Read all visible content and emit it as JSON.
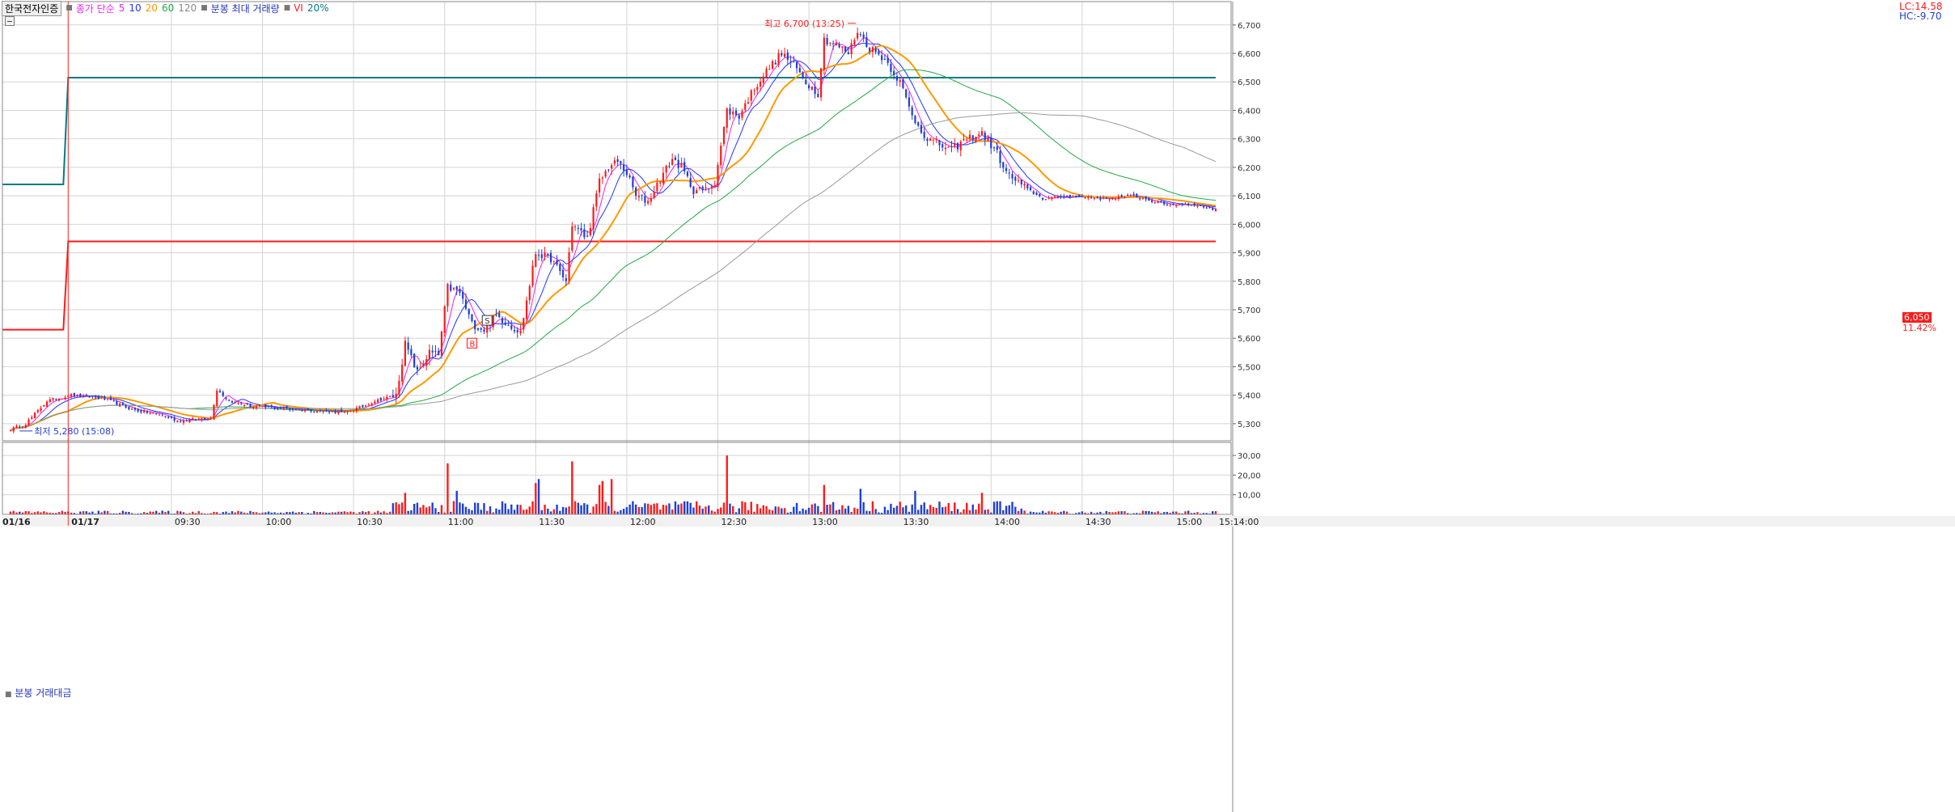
{
  "toolbar": {
    "stock_name": "한국전자인증",
    "price_label": "종가 단순",
    "ma_periods": [
      "5",
      "10",
      "20",
      "60",
      "120"
    ],
    "max_volume_label": "분봉 최대 거래량",
    "vi_label": "VI",
    "vi_pct": "20%"
  },
  "colors": {
    "up": "#ff1a1a",
    "down": "#1f3fd6",
    "ma5": "#ee22ee",
    "ma10": "#2233ff",
    "ma20": "#ff9900",
    "ma60": "#22aa44",
    "ma120": "#999999",
    "vi_upper": "#007b86",
    "vi_lower": "#ff1a1a",
    "grid": "#d4d4d4"
  },
  "right_top": {
    "lc": "LC:14.58",
    "hc": "HC:-9.70"
  },
  "current": {
    "price": "6,050",
    "pct": "11.42%"
  },
  "volume_panel": {
    "title": "분봉 거래대금"
  },
  "chart_data": {
    "type": "candlestick",
    "title": "한국전자인증 분봉",
    "price_axis": {
      "min": 5240,
      "max": 6725,
      "ticks": [
        "6,700",
        "6,600",
        "6,500",
        "6,400",
        "6,300",
        "6,200",
        "6,100",
        "6,000",
        "5,900",
        "5,800",
        "5,700",
        "5,600",
        "5,500",
        "5,400",
        "5,300"
      ]
    },
    "volume_axis": {
      "max": 35,
      "ticks": [
        "30,00",
        "20,00",
        "10,00"
      ]
    },
    "x_ticks": [
      {
        "label": "01/16",
        "bar": 0
      },
      {
        "label": "01/17",
        "bar": 19
      },
      {
        "label": "09:30",
        "bar": 53
      },
      {
        "label": "10:00",
        "bar": 83
      },
      {
        "label": "10:30",
        "bar": 113
      },
      {
        "label": "11:00",
        "bar": 143
      },
      {
        "label": "11:30",
        "bar": 173
      },
      {
        "label": "12:00",
        "bar": 203
      },
      {
        "label": "12:30",
        "bar": 233
      },
      {
        "label": "13:00",
        "bar": 263
      },
      {
        "label": "13:30",
        "bar": 293
      },
      {
        "label": "14:00",
        "bar": 323
      },
      {
        "label": "14:30",
        "bar": 353
      },
      {
        "label": "15:00",
        "bar": 383
      },
      {
        "label": "15:14:00",
        "bar": 397
      }
    ],
    "key_points": [
      {
        "bar": 0,
        "price": 5280
      },
      {
        "bar": 5,
        "price": 5300
      },
      {
        "bar": 12,
        "price": 5380
      },
      {
        "bar": 20,
        "price": 5400
      },
      {
        "bar": 30,
        "price": 5390
      },
      {
        "bar": 40,
        "price": 5350
      },
      {
        "bar": 50,
        "price": 5330
      },
      {
        "bar": 55,
        "price": 5310
      },
      {
        "bar": 66,
        "price": 5320
      },
      {
        "bar": 68,
        "price": 5420
      },
      {
        "bar": 72,
        "price": 5380
      },
      {
        "bar": 80,
        "price": 5360
      },
      {
        "bar": 95,
        "price": 5350
      },
      {
        "bar": 110,
        "price": 5340
      },
      {
        "bar": 116,
        "price": 5360
      },
      {
        "bar": 120,
        "price": 5380
      },
      {
        "bar": 127,
        "price": 5400
      },
      {
        "bar": 130,
        "price": 5580
      },
      {
        "bar": 134,
        "price": 5480
      },
      {
        "bar": 138,
        "price": 5550
      },
      {
        "bar": 141,
        "price": 5540
      },
      {
        "bar": 144,
        "price": 5780
      },
      {
        "bar": 148,
        "price": 5760
      },
      {
        "bar": 152,
        "price": 5650
      },
      {
        "bar": 156,
        "price": 5630
      },
      {
        "bar": 160,
        "price": 5680
      },
      {
        "bar": 168,
        "price": 5620
      },
      {
        "bar": 173,
        "price": 5900
      },
      {
        "bar": 178,
        "price": 5880
      },
      {
        "bar": 183,
        "price": 5800
      },
      {
        "bar": 185,
        "price": 6000
      },
      {
        "bar": 190,
        "price": 5950
      },
      {
        "bar": 194,
        "price": 6150
      },
      {
        "bar": 197,
        "price": 6200
      },
      {
        "bar": 200,
        "price": 6220
      },
      {
        "bar": 203,
        "price": 6180
      },
      {
        "bar": 206,
        "price": 6100
      },
      {
        "bar": 210,
        "price": 6080
      },
      {
        "bar": 214,
        "price": 6160
      },
      {
        "bar": 218,
        "price": 6230
      },
      {
        "bar": 221,
        "price": 6200
      },
      {
        "bar": 225,
        "price": 6120
      },
      {
        "bar": 229,
        "price": 6120
      },
      {
        "bar": 232,
        "price": 6150
      },
      {
        "bar": 236,
        "price": 6400
      },
      {
        "bar": 240,
        "price": 6380
      },
      {
        "bar": 245,
        "price": 6480
      },
      {
        "bar": 250,
        "price": 6550
      },
      {
        "bar": 254,
        "price": 6600
      },
      {
        "bar": 258,
        "price": 6560
      },
      {
        "bar": 262,
        "price": 6500
      },
      {
        "bar": 266,
        "price": 6460
      },
      {
        "bar": 268,
        "price": 6650
      },
      {
        "bar": 272,
        "price": 6630
      },
      {
        "bar": 276,
        "price": 6600
      },
      {
        "bar": 279,
        "price": 6680
      },
      {
        "bar": 283,
        "price": 6620
      },
      {
        "bar": 288,
        "price": 6580
      },
      {
        "bar": 293,
        "price": 6500
      },
      {
        "bar": 297,
        "price": 6380
      },
      {
        "bar": 302,
        "price": 6300
      },
      {
        "bar": 306,
        "price": 6280
      },
      {
        "bar": 310,
        "price": 6260
      },
      {
        "bar": 315,
        "price": 6300
      },
      {
        "bar": 320,
        "price": 6320
      },
      {
        "bar": 325,
        "price": 6250
      },
      {
        "bar": 328,
        "price": 6180
      },
      {
        "bar": 334,
        "price": 6130
      },
      {
        "bar": 340,
        "price": 6090
      },
      {
        "bar": 350,
        "price": 6100
      },
      {
        "bar": 360,
        "price": 6090
      },
      {
        "bar": 370,
        "price": 6100
      },
      {
        "bar": 380,
        "price": 6070
      },
      {
        "bar": 390,
        "price": 6070
      },
      {
        "bar": 397,
        "price": 6050
      }
    ],
    "volume_spikes": [
      {
        "bar": 130,
        "value": 11
      },
      {
        "bar": 144,
        "value": 26
      },
      {
        "bar": 147,
        "value": 12
      },
      {
        "bar": 173,
        "value": 16
      },
      {
        "bar": 174,
        "value": 18
      },
      {
        "bar": 185,
        "value": 27
      },
      {
        "bar": 194,
        "value": 15
      },
      {
        "bar": 195,
        "value": 17
      },
      {
        "bar": 198,
        "value": 18
      },
      {
        "bar": 236,
        "value": 30
      },
      {
        "bar": 268,
        "value": 15
      },
      {
        "bar": 280,
        "value": 13
      },
      {
        "bar": 298,
        "value": 12
      },
      {
        "bar": 320,
        "value": 11
      }
    ],
    "vi_levels": {
      "upper_prev": 6140,
      "upper": 6515,
      "lower_prev": 5630,
      "lower": 5940,
      "switch_bar": 19
    },
    "annotations": {
      "high": {
        "label": "최고 6,700 (13:25)",
        "bar": 279,
        "price": 6700
      },
      "low": {
        "label": "최저 5,280 (15:08)",
        "bar": 3,
        "price": 5280
      },
      "markers": [
        {
          "label": "S",
          "bar": 157,
          "price": 5660
        },
        {
          "label": "B",
          "bar": 152,
          "price": 5580
        }
      ]
    },
    "moving_averages": [
      "5",
      "10",
      "20",
      "60",
      "120"
    ]
  }
}
